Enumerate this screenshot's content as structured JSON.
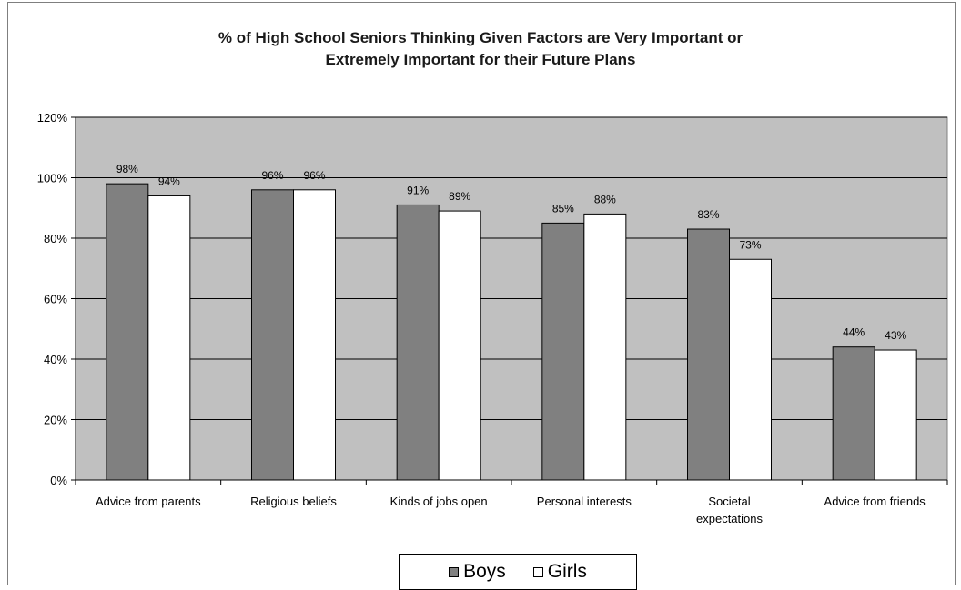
{
  "chart_data": {
    "type": "bar",
    "title_line1": "% of High School Seniors Thinking Given Factors are Very Important or",
    "title_line2": "Extremely Important for their Future Plans",
    "categories": [
      [
        "Advice from parents"
      ],
      [
        "Religious beliefs"
      ],
      [
        "Kinds of jobs open"
      ],
      [
        "Personal interests"
      ],
      [
        "Societal",
        "expectations"
      ],
      [
        "Advice from friends"
      ]
    ],
    "series": [
      {
        "name": "Boys",
        "values": [
          98,
          96,
          91,
          85,
          83,
          44
        ],
        "labels": [
          "98%",
          "96%",
          "91%",
          "85%",
          "83%",
          "44%"
        ],
        "color": "#808080"
      },
      {
        "name": "Girls",
        "values": [
          94,
          96,
          89,
          88,
          73,
          43
        ],
        "labels": [
          "94%",
          "96%",
          "89%",
          "88%",
          "73%",
          "43%"
        ],
        "color": "#ffffff"
      }
    ],
    "ylim": [
      0,
      120
    ],
    "yticks": [
      0,
      20,
      40,
      60,
      80,
      100,
      120
    ],
    "ytick_labels": [
      "0%",
      "20%",
      "40%",
      "60%",
      "80%",
      "100%",
      "120%"
    ],
    "plot_background": "#c0c0c0",
    "grid": true,
    "legend_position": "bottom"
  }
}
